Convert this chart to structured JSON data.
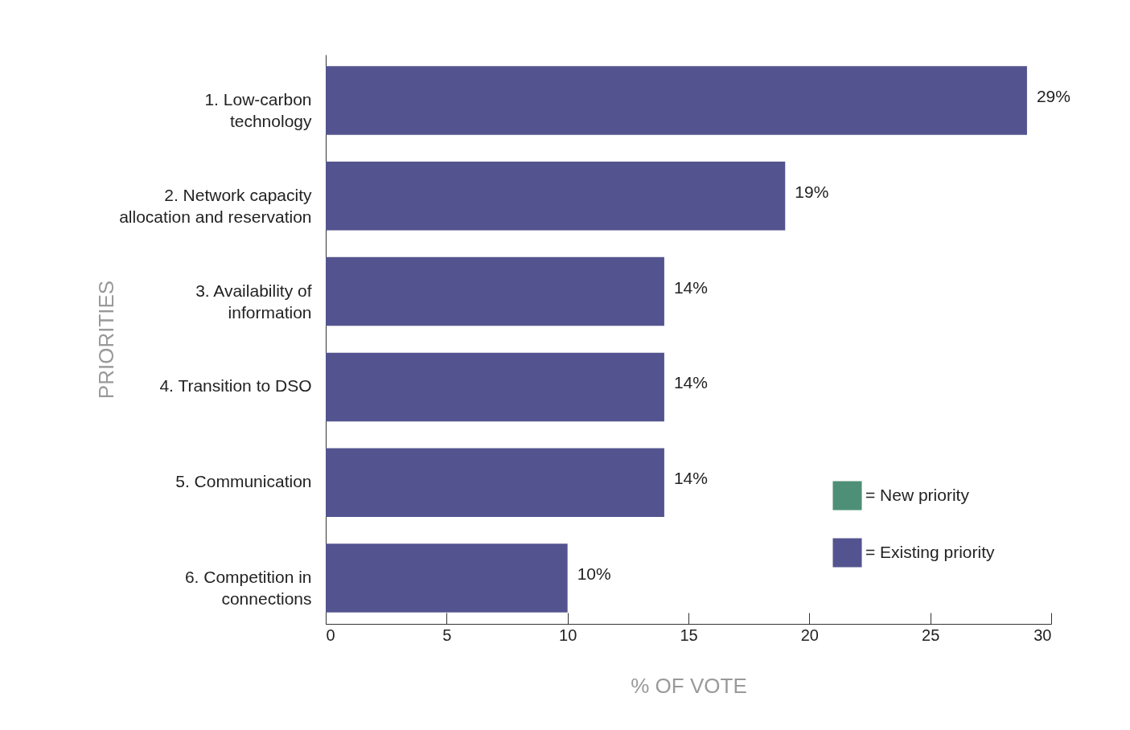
{
  "chart_data": {
    "type": "bar",
    "orientation": "horizontal",
    "xlabel": "% OF VOTE",
    "ylabel": "PRIORITIES",
    "categories": [
      "1. Low-carbon\ntechnology",
      "2. Network capacity\nallocation and reservation",
      "3. Availability of\ninformation",
      "4. Transition to DSO",
      "5. Communication",
      "6. Competition in\nconnections"
    ],
    "series": [
      {
        "name": "= New priority",
        "color": "#4e8f77",
        "values": [
          null,
          null,
          null,
          null,
          null,
          null
        ]
      },
      {
        "name": "= Existing priority",
        "color": "#53548f",
        "values": [
          29,
          19,
          14,
          14,
          14,
          10
        ],
        "value_labels": [
          "29%",
          "19%",
          "14%",
          "14%",
          "14%",
          "10%"
        ]
      }
    ],
    "xlim": [
      0,
      30
    ],
    "xticks": [
      0,
      5,
      10,
      15,
      20,
      25,
      30
    ],
    "grid": false,
    "legend": "bottom right"
  }
}
